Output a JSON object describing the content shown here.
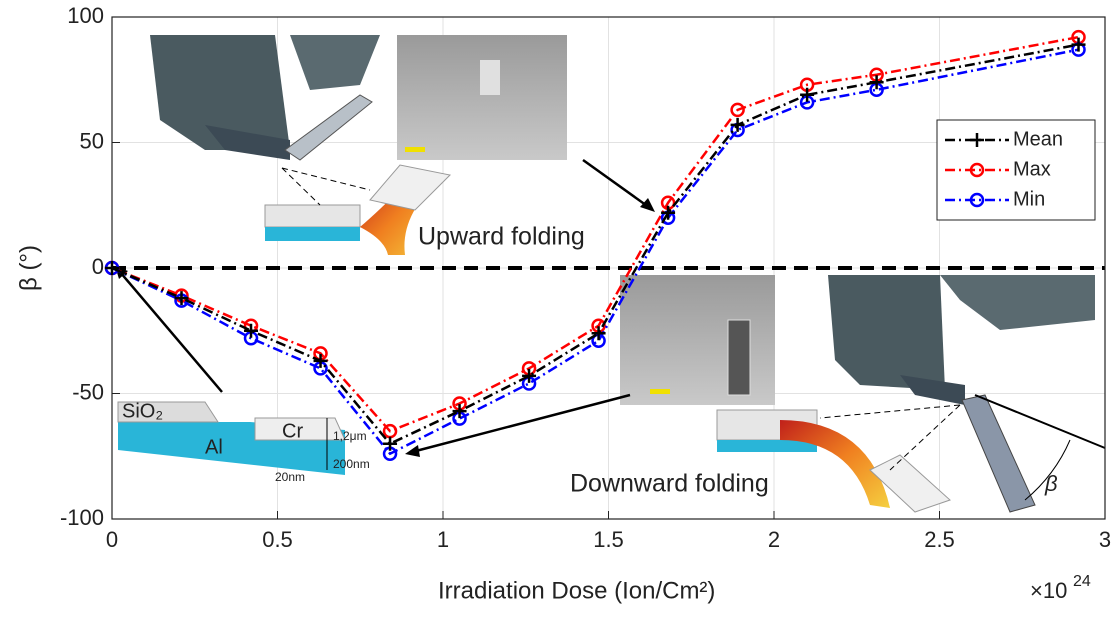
{
  "chart_data": {
    "type": "line",
    "x": [
      0,
      0.21,
      0.42,
      0.63,
      0.84,
      1.05,
      1.26,
      1.47,
      1.68,
      1.89,
      2.1,
      2.31,
      2.92
    ],
    "series": [
      {
        "name": "Mean",
        "color": "#000000",
        "marker": "plus",
        "values": [
          0,
          -12,
          -25,
          -37,
          -70,
          -57,
          -43,
          -26,
          22,
          57,
          69,
          74,
          89
        ]
      },
      {
        "name": "Max",
        "color": "#ff0000",
        "marker": "circle",
        "values": [
          0,
          -11,
          -23,
          -34,
          -65,
          -54,
          -40,
          -23,
          26,
          63,
          73,
          77,
          92
        ]
      },
      {
        "name": "Min",
        "color": "#0000ff",
        "marker": "circle",
        "values": [
          0,
          -13,
          -28,
          -40,
          -74,
          -60,
          -46,
          -29,
          20,
          55,
          66,
          71,
          87
        ]
      }
    ],
    "xlim": [
      0,
      3
    ],
    "xticks": [
      0,
      0.5,
      1,
      1.5,
      2,
      2.5,
      3
    ],
    "ylim": [
      -100,
      100
    ],
    "yticks": [
      -100,
      -50,
      0,
      50,
      100
    ],
    "hlines": [
      0
    ],
    "grid": true,
    "legend": "upper right",
    "x_label": "Irradiation Dose (Ion/Cm²)",
    "y_label": "β (°)",
    "x_exponent_base": "×10",
    "x_exponent": "24",
    "annotations": [
      "Upward folding",
      "Downward folding",
      "SiO₂",
      "Al",
      "Cr",
      "1,2μm",
      "200nm",
      "20nm",
      "β"
    ]
  }
}
